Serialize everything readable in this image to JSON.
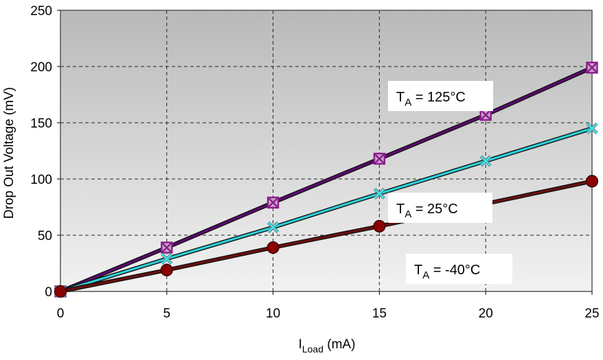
{
  "chart_data": {
    "type": "line",
    "title": "",
    "xlabel": {
      "main": "I",
      "sub": "Load",
      "unit": " (mA)"
    },
    "ylabel": "Drop Out Voltage (mV)",
    "xlim": [
      0,
      25
    ],
    "ylim": [
      0,
      250
    ],
    "xticks": [
      "0",
      "5",
      "10",
      "15",
      "20",
      "25"
    ],
    "yticks": [
      "0",
      "50",
      "100",
      "150",
      "200",
      "250"
    ],
    "grid": true,
    "legend": "none",
    "series": [
      {
        "x": [
          0,
          5,
          10,
          15,
          20,
          25
        ],
        "values": [
          0,
          39,
          79,
          118,
          157,
          199
        ],
        "color": "#5B0A6E",
        "marker": "boxed-x",
        "marker_color": "#8B1F8B"
      },
      {
        "x": [
          0,
          5,
          10,
          15,
          20,
          25
        ],
        "values": [
          0,
          29,
          57,
          87,
          116,
          145
        ],
        "color": "#2FD0D8",
        "marker": "x",
        "marker_color": "#40E0E8"
      },
      {
        "x": [
          0,
          5,
          10,
          15,
          20,
          25
        ],
        "values": [
          0,
          19,
          39,
          58,
          78,
          98
        ],
        "color": "#6B0F0F",
        "marker": "circle",
        "marker_color": "#8B0000"
      }
    ],
    "annotations": [
      {
        "main": "T",
        "sub": "A",
        "rest": " = 125°C",
        "position": "upper-right"
      },
      {
        "main": "T",
        "sub": "A",
        "rest": " = 25°C",
        "position": "middle-right"
      },
      {
        "main": "T",
        "sub": "A",
        "rest": " = -40°C",
        "position": "lower-right"
      }
    ],
    "colors": {
      "plot_bg_top": "#b9b9b9",
      "plot_bg_bottom": "#f2f2f2",
      "grid": "#222222",
      "frame": "#555555"
    }
  }
}
